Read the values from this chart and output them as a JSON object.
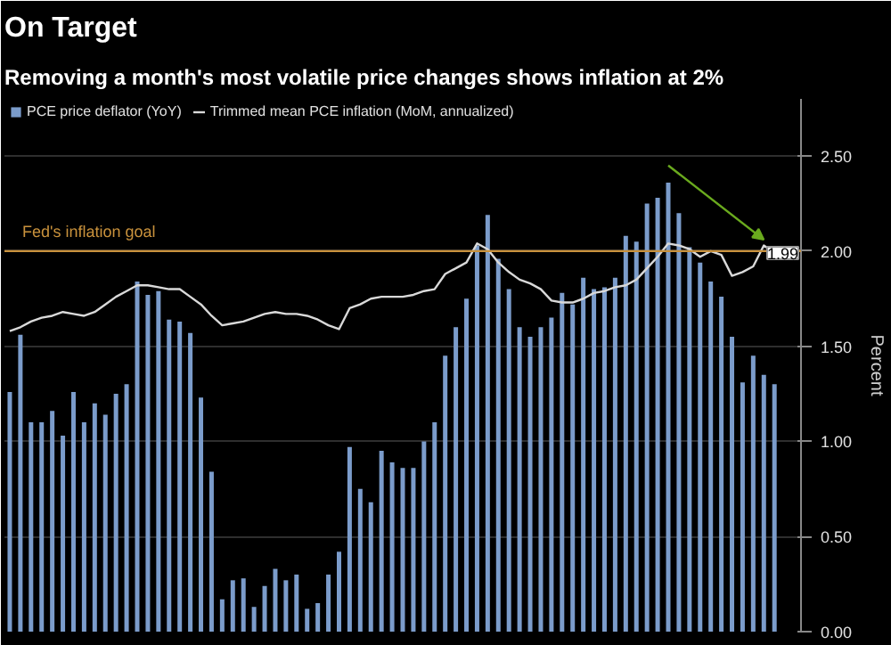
{
  "chart_data": {
    "type": "bar",
    "title": "On Target",
    "subtitle": "Removing a month's most volatile price changes shows inflation at 2%",
    "ylabel": "Percent",
    "categories": [
      null,
      null,
      null,
      null,
      null,
      null,
      null,
      null,
      null,
      null,
      null,
      null,
      null,
      null,
      null,
      null,
      null,
      null,
      null,
      null,
      null,
      null,
      null,
      null,
      null,
      null,
      null,
      null,
      null,
      null,
      null,
      null,
      null,
      null,
      null,
      null,
      null,
      null,
      null,
      null,
      null,
      null,
      null,
      null,
      null,
      null,
      null,
      null,
      null,
      null,
      null,
      null,
      null,
      null,
      null,
      null,
      null,
      null,
      null,
      null,
      null,
      null,
      null,
      null,
      null,
      null,
      null,
      null,
      null,
      null,
      null,
      null,
      null
    ],
    "series": [
      {
        "name": "PCE price deflator (YoY)",
        "color": "#7b9ccb",
        "values": [
          1.26,
          1.56,
          1.1,
          1.1,
          1.16,
          1.03,
          1.26,
          1.1,
          1.2,
          1.14,
          1.25,
          1.3,
          1.84,
          1.77,
          1.79,
          1.64,
          1.63,
          1.57,
          1.23,
          0.84,
          0.17,
          0.27,
          0.28,
          0.13,
          0.24,
          0.33,
          0.27,
          0.3,
          0.12,
          0.15,
          0.3,
          0.42,
          0.97,
          0.75,
          0.68,
          0.95,
          0.89,
          0.86,
          0.86,
          1.0,
          1.1,
          1.45,
          1.6,
          1.75,
          2.03,
          2.19,
          1.96,
          1.8,
          1.6,
          1.55,
          1.6,
          1.65,
          1.78,
          1.72,
          1.86,
          1.8,
          1.81,
          1.86,
          2.08,
          2.05,
          2.25,
          2.28,
          2.36,
          2.2,
          2.02,
          1.94,
          1.84,
          1.76,
          1.55,
          1.31,
          1.45,
          1.35,
          1.3
        ]
      },
      {
        "name": "Trimmed mean PCE inflation (MoM, annualized)",
        "type": "line",
        "color": "#d9d9d9",
        "values": [
          1.58,
          1.6,
          1.63,
          1.65,
          1.66,
          1.68,
          1.67,
          1.66,
          1.68,
          1.72,
          1.76,
          1.79,
          1.82,
          1.82,
          1.81,
          1.8,
          1.8,
          1.76,
          1.72,
          1.66,
          1.61,
          1.62,
          1.63,
          1.65,
          1.67,
          1.68,
          1.67,
          1.67,
          1.66,
          1.64,
          1.61,
          1.59,
          1.7,
          1.72,
          1.75,
          1.76,
          1.76,
          1.76,
          1.77,
          1.79,
          1.8,
          1.88,
          1.91,
          1.94,
          2.04,
          2.01,
          1.94,
          1.89,
          1.85,
          1.83,
          1.8,
          1.74,
          1.73,
          1.73,
          1.75,
          1.78,
          1.79,
          1.81,
          1.82,
          1.85,
          1.91,
          1.97,
          2.04,
          2.03,
          2.01,
          1.97,
          2.0,
          1.98,
          1.87,
          1.89,
          1.92,
          2.03,
          1.99
        ]
      }
    ],
    "ylim": [
      0,
      2.8
    ],
    "yticks": [
      {
        "value": 0,
        "label": "0.00"
      },
      {
        "value": 0.5,
        "label": "0.50"
      },
      {
        "value": 1,
        "label": "1.00"
      },
      {
        "value": 1.5,
        "label": "1.50"
      },
      {
        "value": 2,
        "label": "2.00"
      },
      {
        "value": 2.5,
        "label": "2.50"
      }
    ],
    "ref_lines": [
      {
        "axis": "y",
        "value": 2.0,
        "label": "Fed's inflation goal",
        "color": "#c8913c"
      }
    ],
    "annotations": [
      {
        "text": "1.99",
        "y": 1.99
      }
    ],
    "tick_labels": "y",
    "grid": "y",
    "legend": "top left"
  }
}
